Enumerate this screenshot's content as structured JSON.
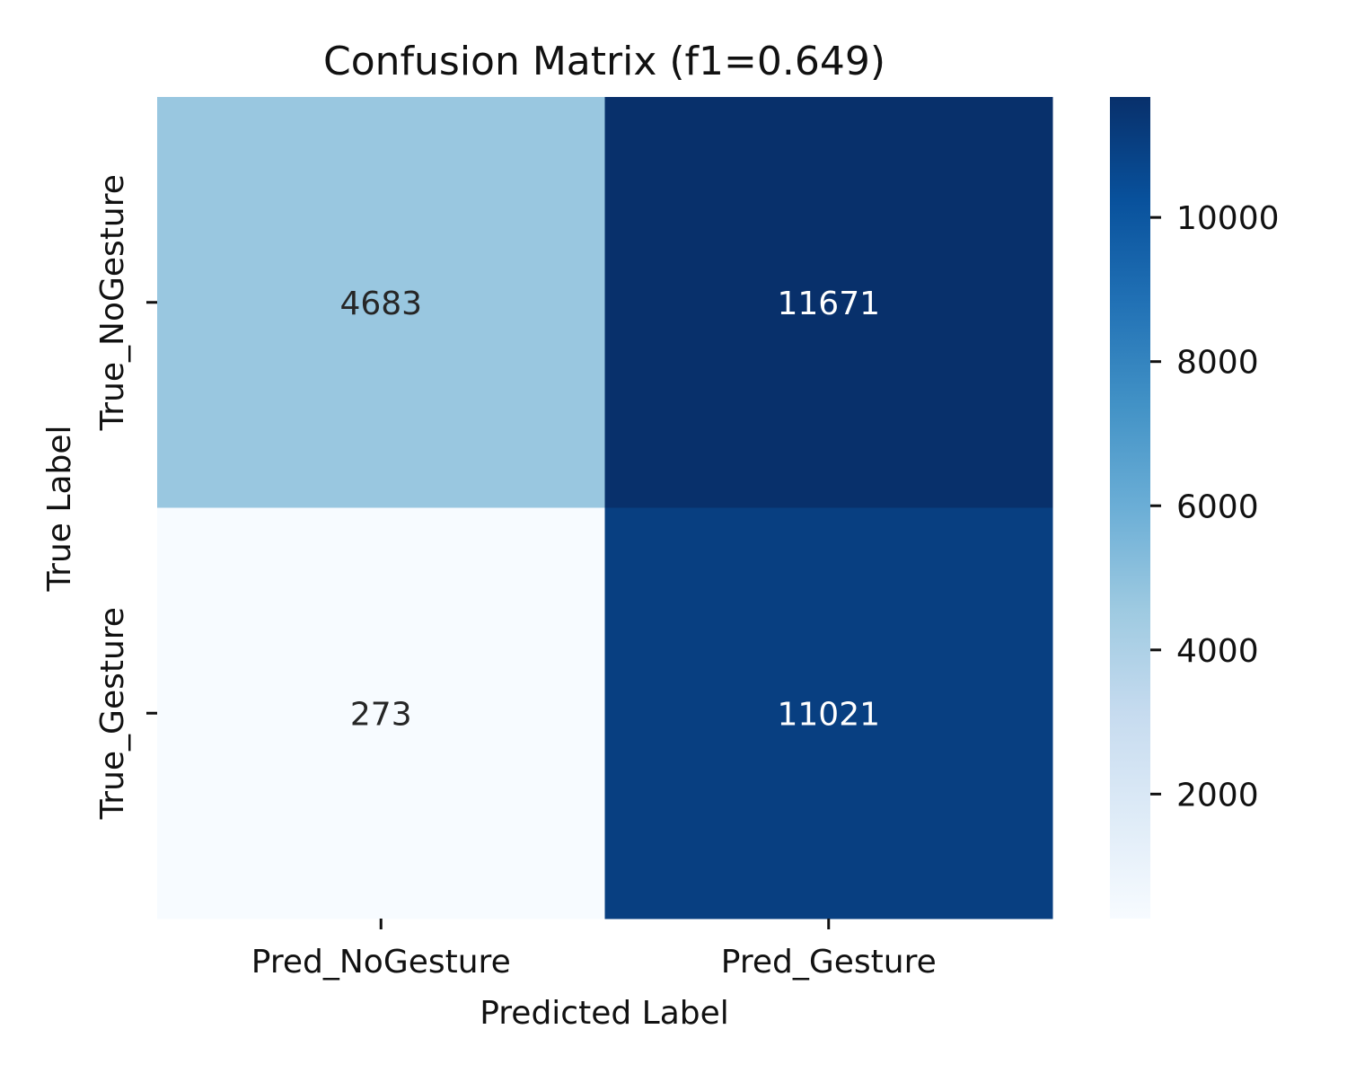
{
  "chart_data": {
    "type": "heatmap",
    "title": "Confusion Matrix (f1=0.649)",
    "xlabel": "Predicted Label",
    "ylabel": "True Label",
    "x_categories": [
      "Pred_NoGesture",
      "Pred_Gesture"
    ],
    "y_categories": [
      "True_NoGesture",
      "True_Gesture"
    ],
    "values": [
      [
        4683,
        11671
      ],
      [
        273,
        11021
      ]
    ],
    "colormap": "Blues",
    "color_range": [
      273,
      11671
    ],
    "colorbar_ticks": [
      2000,
      4000,
      6000,
      8000,
      10000
    ],
    "colorbar_tick_labels": [
      "2000",
      "4000",
      "6000",
      "8000",
      "10000"
    ],
    "grid": false,
    "legend": "colorbar-right"
  }
}
